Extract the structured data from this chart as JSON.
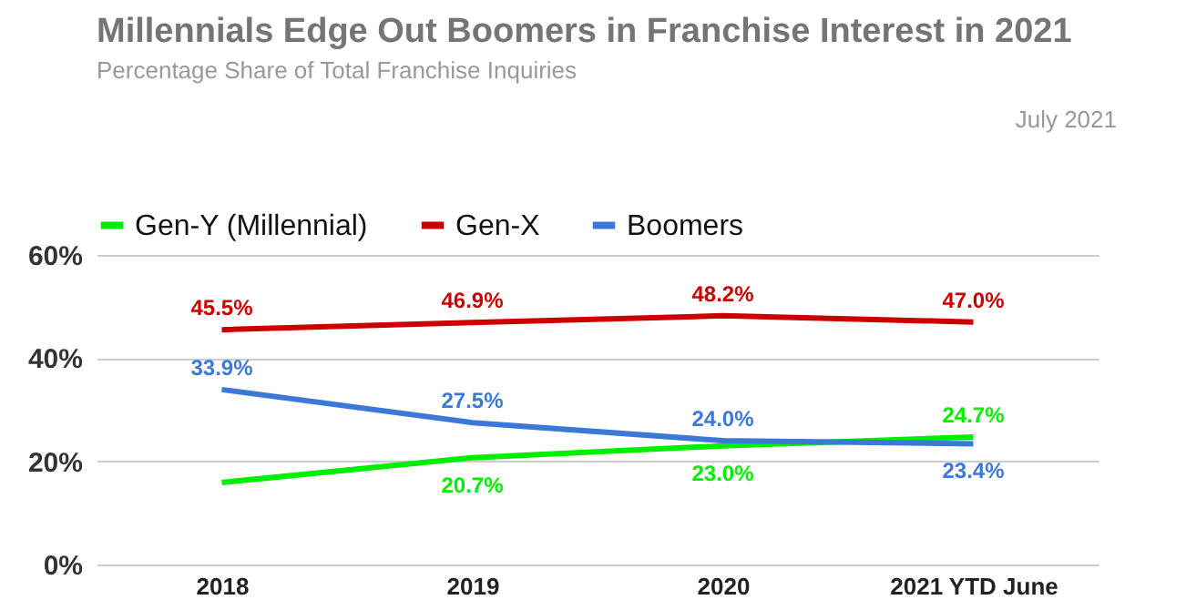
{
  "chart_data": {
    "type": "line",
    "title": "Millennials Edge Out Boomers in Franchise Interest in 2021",
    "subtitle": "Percentage Share of Total Franchise Inquiries",
    "annotations": [
      "July 2021"
    ],
    "categories": [
      "2018",
      "2019",
      "2020",
      "2021 YTD June"
    ],
    "series": [
      {
        "name": "Gen-Y (Millennial)",
        "color": "#00ee00",
        "values": [
          15.9,
          20.7,
          23.0,
          24.7
        ],
        "value_labels": [
          null,
          "20.7%",
          "23.0%",
          "24.7%"
        ]
      },
      {
        "name": "Gen-X",
        "color": "#cc0000",
        "values": [
          45.5,
          46.9,
          48.2,
          47.0
        ],
        "value_labels": [
          "45.5%",
          "46.9%",
          "48.2%",
          "47.0%"
        ]
      },
      {
        "name": "Boomers",
        "color": "#3c78d8",
        "values": [
          33.9,
          27.5,
          24.0,
          23.4
        ],
        "value_labels": [
          "33.9%",
          "27.5%",
          "24.0%",
          "23.4%"
        ]
      }
    ],
    "ylim": [
      0,
      60
    ],
    "yticks": [
      {
        "value": 0,
        "label": "0%"
      },
      {
        "value": 20,
        "label": "20%"
      },
      {
        "value": 40,
        "label": "40%"
      },
      {
        "value": 60,
        "label": "60%"
      }
    ],
    "grid": "y",
    "legend": "top",
    "marker": "none",
    "line_style": "solid"
  }
}
